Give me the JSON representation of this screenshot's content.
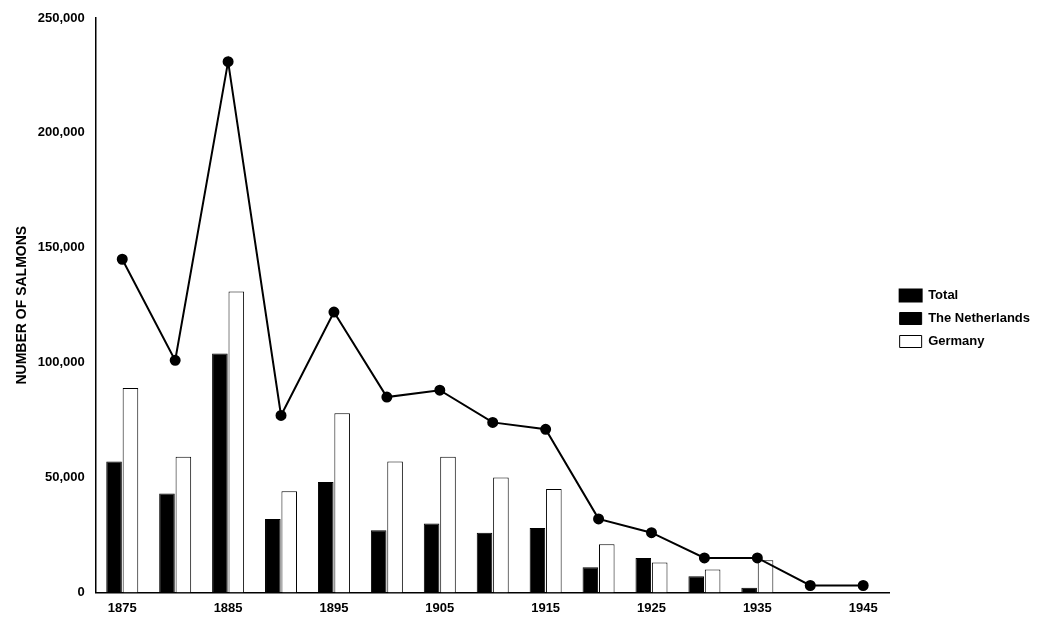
{
  "chart_data": {
    "type": "bar",
    "y_label": "NUMBER OF SALMONS",
    "categories": [
      "1875",
      null,
      "1885",
      null,
      "1895",
      null,
      "1905",
      null,
      "1915",
      null,
      "1925",
      null,
      "1935",
      null,
      "1945"
    ],
    "series": [
      {
        "name": "The Netherlands",
        "type": "bar",
        "color": "#000000",
        "values": [
          57000,
          43000,
          104000,
          32000,
          48000,
          27000,
          30000,
          26000,
          28000,
          11000,
          15000,
          7000,
          2000,
          null,
          null
        ]
      },
      {
        "name": "Germany",
        "type": "bar",
        "color": "#ffffff",
        "values": [
          89000,
          59000,
          131000,
          44000,
          78000,
          57000,
          59000,
          50000,
          45000,
          21000,
          13000,
          10000,
          14000,
          null,
          null
        ]
      },
      {
        "name": "Total",
        "type": "line",
        "color": "#000000",
        "marker": "circle",
        "line_style": "solid",
        "values": [
          145000,
          101000,
          231000,
          77000,
          122000,
          85000,
          88000,
          74000,
          71000,
          32000,
          26000,
          15000,
          15000,
          3000,
          3000
        ]
      }
    ],
    "ylim": [
      0,
      250000
    ],
    "yticks": [
      0,
      {
        "value": 50000,
        "label": "50,000"
      },
      {
        "value": 100000,
        "label": "100,000"
      },
      {
        "value": 150000,
        "label": "150,000"
      },
      {
        "value": 200000,
        "label": "200,000"
      },
      {
        "value": 250000,
        "label": "250,000"
      }
    ],
    "grid": false,
    "legend": "right"
  }
}
